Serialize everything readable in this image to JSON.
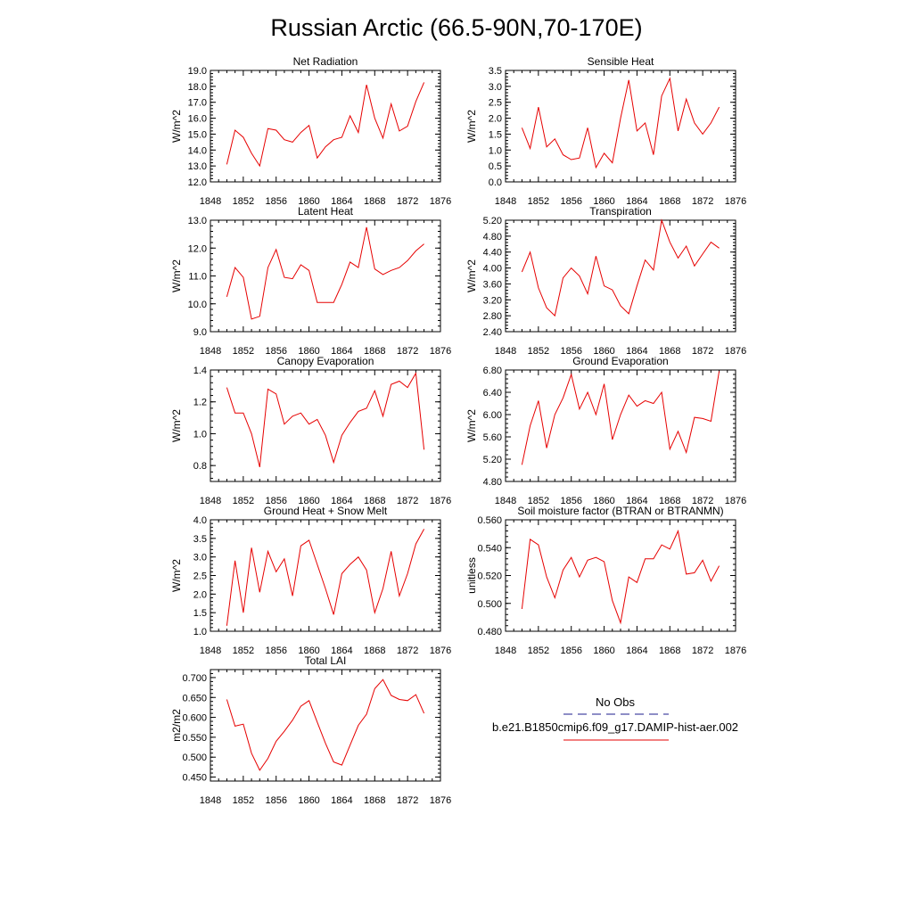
{
  "figure": {
    "title": "Russian Arctic (66.5-90N,70-170E)"
  },
  "legend": {
    "obs_label": "No Obs",
    "obs_color": "#1c1c8c",
    "model_label": "b.e21.B1850cmip6.f09_g17.DAMIP-hist-aer.002",
    "model_color": "#e60000"
  },
  "chart_data": [
    {
      "type": "line",
      "title": "Net Radiation",
      "ylabel": "W/m^2",
      "xlim": [
        1848,
        1876
      ],
      "xticks": [
        1848,
        1852,
        1856,
        1860,
        1864,
        1868,
        1872,
        1876
      ],
      "ylim": [
        12.0,
        19.0
      ],
      "yticks": [
        "12.0",
        "13.0",
        "14.0",
        "15.0",
        "16.0",
        "17.0",
        "18.0",
        "19.0"
      ],
      "x": [
        1850,
        1851,
        1852,
        1853,
        1854,
        1855,
        1856,
        1857,
        1858,
        1859,
        1860,
        1861,
        1862,
        1863,
        1864,
        1865,
        1866,
        1867,
        1868,
        1869,
        1870,
        1871,
        1872,
        1873,
        1874
      ],
      "values": [
        13.1,
        15.25,
        14.8,
        13.8,
        13.0,
        15.35,
        15.25,
        14.65,
        14.5,
        15.1,
        15.55,
        13.5,
        14.2,
        14.65,
        14.8,
        16.15,
        15.1,
        18.1,
        16.0,
        14.75,
        16.9,
        15.2,
        15.5,
        17.05,
        18.25
      ]
    },
    {
      "type": "line",
      "title": "Sensible Heat",
      "ylabel": "W/m^2",
      "xlim": [
        1848,
        1876
      ],
      "xticks": [
        1848,
        1852,
        1856,
        1860,
        1864,
        1868,
        1872,
        1876
      ],
      "ylim": [
        0.0,
        3.5
      ],
      "yticks": [
        "0.0",
        "0.5",
        "1.0",
        "1.5",
        "2.0",
        "2.5",
        "3.0",
        "3.5"
      ],
      "x": [
        1850,
        1851,
        1852,
        1853,
        1854,
        1855,
        1856,
        1857,
        1858,
        1859,
        1860,
        1861,
        1862,
        1863,
        1864,
        1865,
        1866,
        1867,
        1868,
        1869,
        1870,
        1871,
        1872,
        1873,
        1874
      ],
      "values": [
        1.7,
        1.05,
        2.35,
        1.1,
        1.35,
        0.85,
        0.7,
        0.75,
        1.7,
        0.45,
        0.9,
        0.6,
        2.0,
        3.2,
        1.6,
        1.85,
        0.85,
        2.7,
        3.25,
        1.6,
        2.6,
        1.85,
        1.5,
        1.85,
        2.35
      ]
    },
    {
      "type": "line",
      "title": "Latent Heat",
      "ylabel": "W/m^2",
      "xlim": [
        1848,
        1876
      ],
      "xticks": [
        1848,
        1852,
        1856,
        1860,
        1864,
        1868,
        1872,
        1876
      ],
      "ylim": [
        9.0,
        13.0
      ],
      "yticks": [
        "9.0",
        "10.0",
        "11.0",
        "12.0",
        "13.0"
      ],
      "x": [
        1850,
        1851,
        1852,
        1853,
        1854,
        1855,
        1856,
        1857,
        1858,
        1859,
        1860,
        1861,
        1862,
        1863,
        1864,
        1865,
        1866,
        1867,
        1868,
        1869,
        1870,
        1871,
        1872,
        1873,
        1874
      ],
      "values": [
        10.25,
        11.3,
        10.95,
        9.45,
        9.55,
        11.3,
        11.95,
        10.95,
        10.9,
        11.4,
        11.2,
        10.05,
        10.05,
        10.05,
        10.7,
        11.5,
        11.3,
        12.75,
        11.25,
        11.05,
        11.2,
        11.3,
        11.55,
        11.9,
        12.15
      ]
    },
    {
      "type": "line",
      "title": "Transpiration",
      "ylabel": "W/m^2",
      "xlim": [
        1848,
        1876
      ],
      "xticks": [
        1848,
        1852,
        1856,
        1860,
        1864,
        1868,
        1872,
        1876
      ],
      "ylim": [
        2.4,
        5.2
      ],
      "yticks": [
        "2.40",
        "2.80",
        "3.20",
        "3.60",
        "4.00",
        "4.40",
        "4.80",
        "5.20"
      ],
      "x": [
        1850,
        1851,
        1852,
        1853,
        1854,
        1855,
        1856,
        1857,
        1858,
        1859,
        1860,
        1861,
        1862,
        1863,
        1864,
        1865,
        1866,
        1867,
        1868,
        1869,
        1870,
        1871,
        1872,
        1873,
        1874
      ],
      "values": [
        3.9,
        4.4,
        3.5,
        3.0,
        2.8,
        3.75,
        4.0,
        3.8,
        3.35,
        4.3,
        3.55,
        3.45,
        3.05,
        2.85,
        3.55,
        4.2,
        3.95,
        5.2,
        4.65,
        4.25,
        4.55,
        4.05,
        4.35,
        4.65,
        4.5
      ]
    },
    {
      "type": "line",
      "title": "Canopy Evaporation",
      "ylabel": "W/m^2",
      "xlim": [
        1848,
        1876
      ],
      "xticks": [
        1848,
        1852,
        1856,
        1860,
        1864,
        1868,
        1872,
        1876
      ],
      "ylim": [
        0.7,
        1.4
      ],
      "yticks": [
        "0.8",
        "1.0",
        "1.2",
        "1.4"
      ],
      "yticks_values": [
        0.8,
        1.0,
        1.2,
        1.4
      ],
      "x": [
        1850,
        1851,
        1852,
        1853,
        1854,
        1855,
        1856,
        1857,
        1858,
        1859,
        1860,
        1861,
        1862,
        1863,
        1864,
        1865,
        1866,
        1867,
        1868,
        1869,
        1870,
        1871,
        1872,
        1873,
        1874
      ],
      "values": [
        1.29,
        1.13,
        1.13,
        1.0,
        0.79,
        1.28,
        1.25,
        1.06,
        1.11,
        1.13,
        1.06,
        1.09,
        0.99,
        0.82,
        0.99,
        1.07,
        1.14,
        1.16,
        1.27,
        1.11,
        1.31,
        1.33,
        1.29,
        1.38,
        0.9
      ]
    },
    {
      "type": "line",
      "title": "Ground Evaporation",
      "ylabel": "W/m^2",
      "xlim": [
        1848,
        1876
      ],
      "xticks": [
        1848,
        1852,
        1856,
        1860,
        1864,
        1868,
        1872,
        1876
      ],
      "ylim": [
        4.8,
        6.8
      ],
      "yticks": [
        "4.80",
        "5.20",
        "5.60",
        "6.00",
        "6.40",
        "6.80"
      ],
      "x": [
        1850,
        1851,
        1852,
        1853,
        1854,
        1855,
        1856,
        1857,
        1858,
        1859,
        1860,
        1861,
        1862,
        1863,
        1864,
        1865,
        1866,
        1867,
        1868,
        1869,
        1870,
        1871,
        1872,
        1873,
        1874
      ],
      "values": [
        5.1,
        5.8,
        6.25,
        5.4,
        6.0,
        6.3,
        6.72,
        6.1,
        6.4,
        6.0,
        6.55,
        5.55,
        6.0,
        6.35,
        6.15,
        6.25,
        6.2,
        6.4,
        5.38,
        5.7,
        5.32,
        5.95,
        5.93,
        5.88,
        6.78
      ]
    },
    {
      "type": "line",
      "title": "Ground Heat + Snow Melt",
      "ylabel": "W/m^2",
      "xlim": [
        1848,
        1876
      ],
      "xticks": [
        1848,
        1852,
        1856,
        1860,
        1864,
        1868,
        1872,
        1876
      ],
      "ylim": [
        1.0,
        4.0
      ],
      "yticks": [
        "1.0",
        "1.5",
        "2.0",
        "2.5",
        "3.0",
        "3.5",
        "4.0"
      ],
      "x": [
        1850,
        1851,
        1852,
        1853,
        1854,
        1855,
        1856,
        1857,
        1858,
        1859,
        1860,
        1861,
        1862,
        1863,
        1864,
        1865,
        1866,
        1867,
        1868,
        1869,
        1870,
        1871,
        1872,
        1873,
        1874
      ],
      "values": [
        1.15,
        2.9,
        1.5,
        3.25,
        2.05,
        3.15,
        2.6,
        2.95,
        1.95,
        3.3,
        3.45,
        2.8,
        2.15,
        1.45,
        2.55,
        2.8,
        3.0,
        2.65,
        1.5,
        2.15,
        3.15,
        1.95,
        2.55,
        3.35,
        3.75
      ]
    },
    {
      "type": "line",
      "title": "Soil moisture factor (BTRAN or BTRANMN)",
      "ylabel": "unitless",
      "xlim": [
        1848,
        1876
      ],
      "xticks": [
        1848,
        1852,
        1856,
        1860,
        1864,
        1868,
        1872,
        1876
      ],
      "ylim": [
        0.48,
        0.56
      ],
      "yticks": [
        "0.480",
        "0.500",
        "0.520",
        "0.540",
        "0.560"
      ],
      "x": [
        1850,
        1851,
        1852,
        1853,
        1854,
        1855,
        1856,
        1857,
        1858,
        1859,
        1860,
        1861,
        1862,
        1863,
        1864,
        1865,
        1866,
        1867,
        1868,
        1869,
        1870,
        1871,
        1872,
        1873,
        1874
      ],
      "values": [
        0.496,
        0.546,
        0.542,
        0.519,
        0.504,
        0.524,
        0.533,
        0.519,
        0.531,
        0.533,
        0.53,
        0.502,
        0.486,
        0.519,
        0.515,
        0.532,
        0.532,
        0.542,
        0.539,
        0.552,
        0.521,
        0.522,
        0.531,
        0.516,
        0.527
      ]
    },
    {
      "type": "line",
      "title": "Total LAI",
      "ylabel": "m2/m2",
      "xlim": [
        1848,
        1876
      ],
      "xticks": [
        1848,
        1852,
        1856,
        1860,
        1864,
        1868,
        1872,
        1876
      ],
      "ylim": [
        0.44,
        0.72
      ],
      "yticks": [
        "0.450",
        "0.500",
        "0.550",
        "0.600",
        "0.650",
        "0.700"
      ],
      "yticks_values": [
        0.45,
        0.5,
        0.55,
        0.6,
        0.65,
        0.7
      ],
      "x": [
        1850,
        1851,
        1852,
        1853,
        1854,
        1855,
        1856,
        1857,
        1858,
        1859,
        1860,
        1861,
        1862,
        1863,
        1864,
        1865,
        1866,
        1867,
        1868,
        1869,
        1870,
        1871,
        1872,
        1873,
        1874
      ],
      "values": [
        0.645,
        0.578,
        0.583,
        0.51,
        0.467,
        0.497,
        0.54,
        0.565,
        0.593,
        0.628,
        0.642,
        0.588,
        0.535,
        0.488,
        0.48,
        0.53,
        0.58,
        0.608,
        0.672,
        0.695,
        0.655,
        0.645,
        0.642,
        0.657,
        0.61
      ]
    }
  ]
}
